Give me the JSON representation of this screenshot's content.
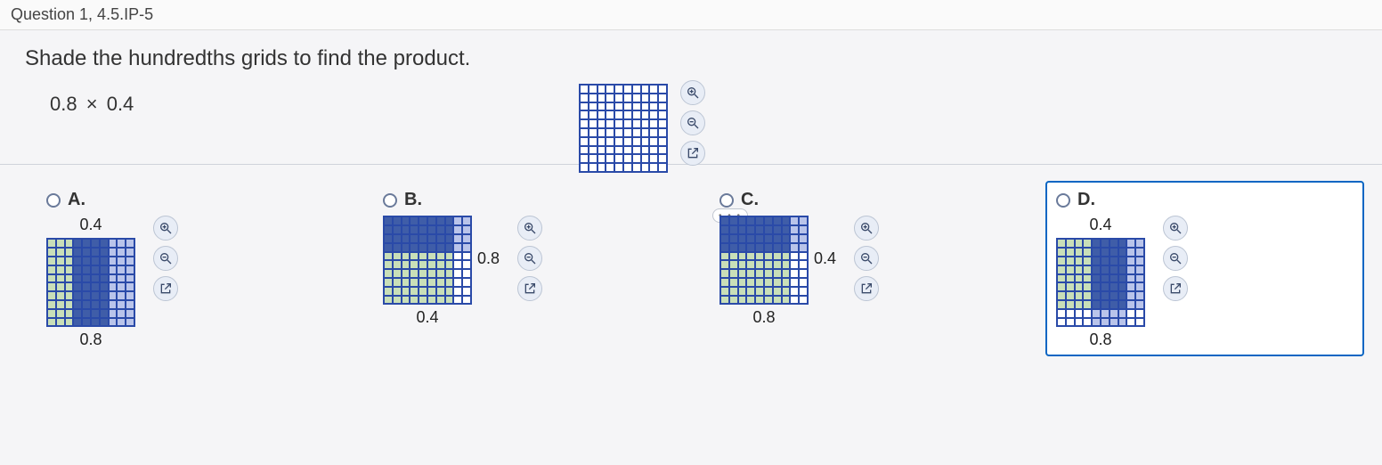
{
  "header": {
    "title": "Question 1, 4.5.IP-5"
  },
  "prompt": {
    "text": "Shade the hundredths grids to find the product.",
    "expression_a": "0.8",
    "expression_b": "0.4",
    "times_glyph": "×"
  },
  "tools": {
    "zoom_in": "zoom-in",
    "zoom_out": "zoom-out",
    "popout": "popout"
  },
  "separator": {
    "dots": "• • •"
  },
  "colors": {
    "light_green": "#c9dfb8",
    "dark_blue": "#3f5da8",
    "pale_blue": "#b9c4ea",
    "grid_line": "#2a4aa8",
    "selected_border": "#0b66c3"
  },
  "top_figure": {
    "rows": 10,
    "cols": 10,
    "fill": "none"
  },
  "options": [
    {
      "key": "A",
      "label": "A.",
      "selected": false,
      "top_label": "0.4",
      "bottom_label": "0.8",
      "side_label": "",
      "grid": {
        "rows": 10,
        "cols": 10,
        "pattern": "A",
        "desc": "columns shaded: cols 1-3 light green, cols 4-7 dark, cols 8-10 pale blue across all rows"
      }
    },
    {
      "key": "B",
      "label": "B.",
      "selected": false,
      "top_label": "",
      "bottom_label": "0.4",
      "side_label": "0.8",
      "grid": {
        "rows": 10,
        "cols": 10,
        "pattern": "B",
        "desc": "top 4 rows x 8 cols dark, top 4 rows cols 9-10 pale; rows 5-10 cols 1-8 light green"
      }
    },
    {
      "key": "C",
      "label": "C.",
      "selected": false,
      "top_label": "",
      "bottom_label": "0.8",
      "side_label": "0.4",
      "grid": {
        "rows": 10,
        "cols": 10,
        "pattern": "C",
        "desc": "top 4 rows x 8 cols dark, top 4 rows cols 9-10 pale; rows 5-10 cols 1-8 light green; rows 5-10 cols 9-10 white"
      }
    },
    {
      "key": "D",
      "label": "D.",
      "selected": true,
      "top_label": "0.4",
      "bottom_label": "0.8",
      "side_label": "",
      "grid": {
        "rows": 10,
        "cols": 10,
        "pattern": "D",
        "desc": "top 8 rows: cols 1-4 light green, cols 5-8 dark, cols 9-10 pale; bottom 2 rows: cols 5-8 pale else white"
      }
    }
  ]
}
